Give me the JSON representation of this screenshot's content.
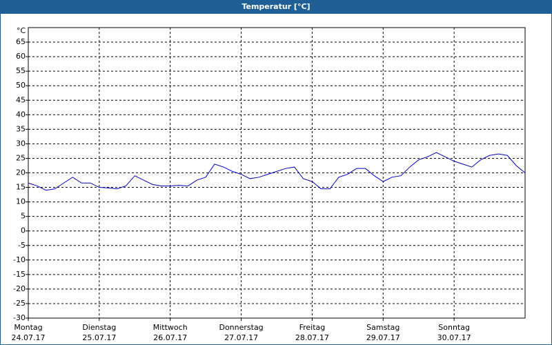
{
  "window_title": "Temperatur [°C]",
  "chart_data": {
    "type": "line",
    "y_unit": "°C",
    "x": [
      0,
      3,
      6,
      9,
      12,
      15,
      18,
      21,
      24,
      27,
      30,
      33,
      36,
      39,
      42,
      45,
      48,
      51,
      54,
      57,
      60,
      63,
      66,
      69,
      72,
      75,
      78,
      81,
      84,
      87,
      90,
      93,
      96,
      99,
      102,
      105,
      108,
      111,
      114,
      117,
      120,
      123,
      126,
      129,
      132,
      135,
      138,
      141,
      144,
      147,
      150,
      153,
      156,
      159,
      162,
      165,
      168
    ],
    "series": [
      {
        "color": "#0000c8",
        "values": [
          16.5,
          15.5,
          14,
          14.5,
          16.5,
          18.5,
          16.5,
          16.5,
          15,
          14.8,
          14.5,
          15.5,
          19,
          17.5,
          16,
          15.5,
          15.5,
          15.7,
          15.5,
          17.5,
          18.5,
          23,
          22,
          20.5,
          19.5,
          18,
          18.5,
          19.5,
          20.5,
          21.5,
          22,
          18,
          17,
          14.5,
          14.5,
          18.5,
          19.5,
          21.5,
          21.5,
          19,
          17,
          18.5,
          19,
          22,
          24.5,
          25.5,
          27,
          25.5,
          24,
          23,
          22,
          24.5,
          26,
          26.5,
          26,
          22.5,
          20
        ]
      }
    ],
    "xlim": [
      0,
      168
    ],
    "xticks": [
      {
        "value": 0,
        "label": "Montag"
      },
      {
        "value": 24,
        "label": "Dienstag"
      },
      {
        "value": 48,
        "label": "Mittwoch"
      },
      {
        "value": 72,
        "label": "Donnerstag"
      },
      {
        "value": 96,
        "label": "Freitag"
      },
      {
        "value": 120,
        "label": "Samstag"
      },
      {
        "value": 144,
        "label": "Sonntag"
      }
    ],
    "xtick_dates": [
      "24.07.17",
      "25.07.17",
      "26.07.17",
      "27.07.17",
      "28.07.17",
      "29.07.17",
      "30.07.17"
    ],
    "ylim": [
      -30,
      70
    ],
    "yticks": [
      -30,
      -25,
      -20,
      -15,
      -10,
      -5,
      0,
      5,
      10,
      15,
      20,
      25,
      30,
      35,
      40,
      45,
      50,
      55,
      60,
      65
    ],
    "grid": true
  }
}
